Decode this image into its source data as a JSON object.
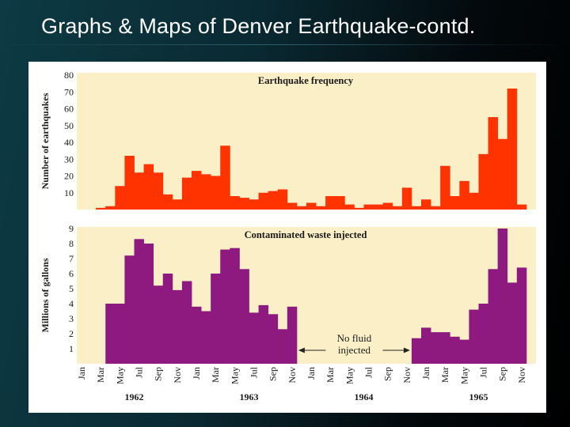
{
  "slide": {
    "title": "Graphs & Maps of Denver Earthquake-contd."
  },
  "colors": {
    "quake_bar": "#ff3300",
    "waste_bar": "#8e1a7f",
    "plot_bg": "#fbefc8"
  },
  "chart_data": [
    {
      "type": "bar",
      "title": "Earthquake frequency",
      "ylabel": "Number of earthquakes",
      "ylim": [
        0,
        80
      ],
      "yticks": [
        10,
        20,
        30,
        40,
        50,
        60,
        70,
        80
      ],
      "start_month": "Jan 1962",
      "values": [
        0,
        0,
        1,
        2,
        14,
        32,
        22,
        27,
        22,
        9,
        6,
        19,
        23,
        21,
        20,
        38,
        8,
        7,
        6,
        10,
        11,
        12,
        4,
        2,
        4,
        2,
        8,
        8,
        3,
        1,
        3,
        3,
        4,
        2,
        13,
        2,
        6,
        2,
        26,
        8,
        17,
        10,
        33,
        55,
        42,
        72,
        3,
        0
      ]
    },
    {
      "type": "bar",
      "title": "Contaminated waste injected",
      "ylabel": "Millions of gallons",
      "ylim": [
        0,
        9
      ],
      "yticks": [
        1,
        2,
        3,
        4,
        5,
        6,
        7,
        8,
        9
      ],
      "start_month": "Jan 1962",
      "values": [
        0,
        0,
        0,
        4.0,
        4.0,
        7.2,
        8.3,
        8.0,
        5.2,
        6.0,
        4.9,
        5.5,
        3.8,
        3.5,
        6.0,
        7.6,
        7.7,
        6.3,
        3.4,
        3.9,
        3.3,
        2.3,
        3.8,
        0,
        0,
        0,
        0,
        0,
        0,
        0,
        0,
        0,
        0,
        0,
        0,
        1.7,
        2.4,
        2.1,
        2.1,
        1.8,
        1.6,
        3.6,
        4.0,
        6.3,
        9.0,
        5.4,
        6.4,
        0
      ],
      "annotation": [
        "No fluid",
        "injected"
      ]
    }
  ],
  "x_axis": {
    "months": [
      "Jan",
      "Mar",
      "May",
      "Jul",
      "Sep",
      "Nov",
      "Jan",
      "Mar",
      "May",
      "Jul",
      "Sep",
      "Nov",
      "Jan",
      "Mar",
      "May",
      "Jul",
      "Sep",
      "Nov",
      "Jan",
      "Mar",
      "May",
      "Jul",
      "Sep",
      "Nov"
    ],
    "years": [
      "1962",
      "1963",
      "1964",
      "1965"
    ]
  }
}
